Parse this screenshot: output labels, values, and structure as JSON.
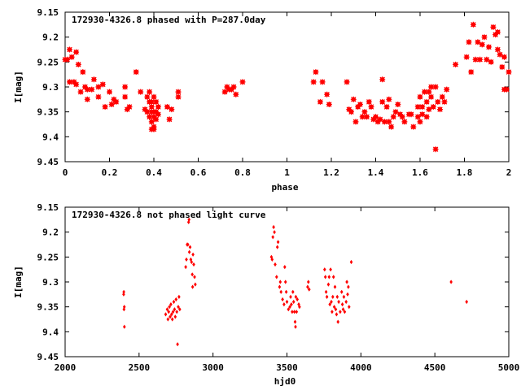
{
  "chart_data": [
    {
      "type": "scatter",
      "title": "172930-4326.8 phased with P=287.0day",
      "xlabel": "phase",
      "ylabel": "I[mag]",
      "xlim": [
        0,
        2
      ],
      "ylim": [
        9.45,
        9.15
      ],
      "y_inverted": true,
      "grid": false,
      "x_ticks": [
        0,
        0.2,
        0.4,
        0.6,
        0.8,
        1,
        1.2,
        1.4,
        1.6,
        1.8,
        2
      ],
      "x_tick_labels": [
        "0",
        "0.2",
        "0.4",
        "0.6",
        "0.8",
        "1",
        "1.2",
        "1.4",
        "1.6",
        "1.8",
        "2"
      ],
      "y_ticks": [
        9.15,
        9.2,
        9.25,
        9.3,
        9.35,
        9.4,
        9.45
      ],
      "y_tick_labels": [
        "9.15",
        "9.2",
        "9.25",
        "9.3",
        "9.35",
        "9.4",
        "9.45"
      ],
      "marker": "star",
      "color": "#ff0000",
      "points": [
        [
          0.0,
          9.245
        ],
        [
          0.01,
          9.245
        ],
        [
          0.02,
          9.225
        ],
        [
          0.03,
          9.24
        ],
        [
          0.02,
          9.29
        ],
        [
          0.04,
          9.29
        ],
        [
          0.05,
          9.23
        ],
        [
          0.06,
          9.255
        ],
        [
          0.05,
          9.295
        ],
        [
          0.07,
          9.31
        ],
        [
          0.08,
          9.27
        ],
        [
          0.09,
          9.3
        ],
        [
          0.1,
          9.305
        ],
        [
          0.1,
          9.325
        ],
        [
          0.12,
          9.305
        ],
        [
          0.13,
          9.285
        ],
        [
          0.15,
          9.32
        ],
        [
          0.15,
          9.3
        ],
        [
          0.17,
          9.295
        ],
        [
          0.18,
          9.34
        ],
        [
          0.2,
          9.31
        ],
        [
          0.21,
          9.335
        ],
        [
          0.22,
          9.325
        ],
        [
          0.23,
          9.33
        ],
        [
          0.27,
          9.3
        ],
        [
          0.27,
          9.32
        ],
        [
          0.28,
          9.345
        ],
        [
          0.29,
          9.34
        ],
        [
          0.32,
          9.27
        ],
        [
          0.34,
          9.31
        ],
        [
          0.36,
          9.345
        ],
        [
          0.37,
          9.35
        ],
        [
          0.37,
          9.32
        ],
        [
          0.38,
          9.31
        ],
        [
          0.38,
          9.33
        ],
        [
          0.38,
          9.36
        ],
        [
          0.39,
          9.33
        ],
        [
          0.39,
          9.34
        ],
        [
          0.39,
          9.35
        ],
        [
          0.39,
          9.37
        ],
        [
          0.39,
          9.385
        ],
        [
          0.4,
          9.32
        ],
        [
          0.4,
          9.35
        ],
        [
          0.4,
          9.36
        ],
        [
          0.4,
          9.38
        ],
        [
          0.4,
          9.385
        ],
        [
          0.41,
          9.33
        ],
        [
          0.41,
          9.35
        ],
        [
          0.41,
          9.365
        ],
        [
          0.42,
          9.34
        ],
        [
          0.42,
          9.355
        ],
        [
          0.46,
          9.34
        ],
        [
          0.47,
          9.365
        ],
        [
          0.48,
          9.345
        ],
        [
          0.51,
          9.31
        ],
        [
          0.51,
          9.32
        ],
        [
          0.72,
          9.31
        ],
        [
          0.73,
          9.3
        ],
        [
          0.74,
          9.305
        ],
        [
          0.75,
          9.305
        ],
        [
          0.76,
          9.3
        ],
        [
          0.77,
          9.315
        ],
        [
          0.8,
          9.29
        ],
        [
          1.12,
          9.29
        ],
        [
          1.13,
          9.27
        ],
        [
          1.15,
          9.33
        ],
        [
          1.16,
          9.29
        ],
        [
          1.18,
          9.315
        ],
        [
          1.19,
          9.335
        ],
        [
          1.27,
          9.29
        ],
        [
          1.28,
          9.345
        ],
        [
          1.29,
          9.35
        ],
        [
          1.3,
          9.325
        ],
        [
          1.31,
          9.37
        ],
        [
          1.32,
          9.34
        ],
        [
          1.33,
          9.335
        ],
        [
          1.34,
          9.36
        ],
        [
          1.35,
          9.35
        ],
        [
          1.36,
          9.36
        ],
        [
          1.37,
          9.33
        ],
        [
          1.38,
          9.34
        ],
        [
          1.39,
          9.365
        ],
        [
          1.4,
          9.36
        ],
        [
          1.41,
          9.37
        ],
        [
          1.42,
          9.365
        ],
        [
          1.43,
          9.33
        ],
        [
          1.43,
          9.285
        ],
        [
          1.44,
          9.37
        ],
        [
          1.45,
          9.34
        ],
        [
          1.46,
          9.37
        ],
        [
          1.46,
          9.325
        ],
        [
          1.47,
          9.38
        ],
        [
          1.48,
          9.36
        ],
        [
          1.49,
          9.35
        ],
        [
          1.5,
          9.335
        ],
        [
          1.51,
          9.355
        ],
        [
          1.52,
          9.36
        ],
        [
          1.53,
          9.37
        ],
        [
          1.55,
          9.355
        ],
        [
          1.56,
          9.355
        ],
        [
          1.57,
          9.38
        ],
        [
          1.59,
          9.36
        ],
        [
          1.59,
          9.34
        ],
        [
          1.6,
          9.37
        ],
        [
          1.6,
          9.32
        ],
        [
          1.61,
          9.34
        ],
        [
          1.61,
          9.355
        ],
        [
          1.62,
          9.31
        ],
        [
          1.63,
          9.33
        ],
        [
          1.63,
          9.36
        ],
        [
          1.64,
          9.31
        ],
        [
          1.64,
          9.345
        ],
        [
          1.65,
          9.3
        ],
        [
          1.65,
          9.32
        ],
        [
          1.66,
          9.34
        ],
        [
          1.67,
          9.3
        ],
        [
          1.67,
          9.425
        ],
        [
          1.68,
          9.33
        ],
        [
          1.69,
          9.345
        ],
        [
          1.7,
          9.32
        ],
        [
          1.71,
          9.33
        ],
        [
          1.72,
          9.305
        ],
        [
          1.76,
          9.255
        ],
        [
          1.81,
          9.24
        ],
        [
          1.82,
          9.21
        ],
        [
          1.83,
          9.27
        ],
        [
          1.84,
          9.175
        ],
        [
          1.85,
          9.245
        ],
        [
          1.86,
          9.21
        ],
        [
          1.87,
          9.245
        ],
        [
          1.88,
          9.215
        ],
        [
          1.89,
          9.2
        ],
        [
          1.9,
          9.245
        ],
        [
          1.91,
          9.22
        ],
        [
          1.92,
          9.25
        ],
        [
          1.93,
          9.18
        ],
        [
          1.94,
          9.195
        ],
        [
          1.95,
          9.19
        ],
        [
          1.95,
          9.225
        ],
        [
          1.96,
          9.235
        ],
        [
          1.97,
          9.26
        ],
        [
          1.98,
          9.24
        ],
        [
          1.98,
          9.305
        ],
        [
          1.99,
          9.305
        ],
        [
          2.0,
          9.27
        ]
      ]
    },
    {
      "type": "scatter",
      "title": "172930-4326.8 not phased light curve",
      "xlabel": "hjd0",
      "ylabel": "I[mag]",
      "xlim": [
        2000,
        5000
      ],
      "ylim": [
        9.45,
        9.15
      ],
      "y_inverted": true,
      "grid": false,
      "x_ticks": [
        2000,
        2500,
        3000,
        3500,
        4000,
        4500,
        5000
      ],
      "x_tick_labels": [
        "2000",
        "2500",
        "3000",
        "3500",
        "4000",
        "4500",
        "5000"
      ],
      "y_ticks": [
        9.15,
        9.2,
        9.25,
        9.3,
        9.35,
        9.4,
        9.45
      ],
      "y_tick_labels": [
        "9.15",
        "9.2",
        "9.25",
        "9.3",
        "9.35",
        "9.4",
        "9.45"
      ],
      "marker": "diamond",
      "color": "#ff0000",
      "points": [
        [
          2396,
          9.325
        ],
        [
          2397,
          9.32
        ],
        [
          2398,
          9.355
        ],
        [
          2400,
          9.35
        ],
        [
          2401,
          9.39
        ],
        [
          2680,
          9.365
        ],
        [
          2690,
          9.355
        ],
        [
          2695,
          9.375
        ],
        [
          2700,
          9.36
        ],
        [
          2705,
          9.35
        ],
        [
          2710,
          9.37
        ],
        [
          2715,
          9.345
        ],
        [
          2720,
          9.365
        ],
        [
          2725,
          9.375
        ],
        [
          2730,
          9.36
        ],
        [
          2735,
          9.34
        ],
        [
          2740,
          9.355
        ],
        [
          2745,
          9.37
        ],
        [
          2750,
          9.335
        ],
        [
          2755,
          9.36
        ],
        [
          2760,
          9.425
        ],
        [
          2765,
          9.35
        ],
        [
          2770,
          9.33
        ],
        [
          2775,
          9.355
        ],
        [
          2815,
          9.27
        ],
        [
          2820,
          9.255
        ],
        [
          2825,
          9.225
        ],
        [
          2830,
          9.225
        ],
        [
          2835,
          9.18
        ],
        [
          2838,
          9.175
        ],
        [
          2840,
          9.24
        ],
        [
          2845,
          9.23
        ],
        [
          2850,
          9.255
        ],
        [
          2855,
          9.26
        ],
        [
          2860,
          9.285
        ],
        [
          2862,
          9.31
        ],
        [
          2865,
          9.245
        ],
        [
          2870,
          9.265
        ],
        [
          2875,
          9.29
        ],
        [
          2880,
          9.305
        ],
        [
          3395,
          9.25
        ],
        [
          3400,
          9.255
        ],
        [
          3405,
          9.21
        ],
        [
          3410,
          9.19
        ],
        [
          3415,
          9.2
        ],
        [
          3420,
          9.265
        ],
        [
          3430,
          9.29
        ],
        [
          3435,
          9.23
        ],
        [
          3440,
          9.22
        ],
        [
          3450,
          9.31
        ],
        [
          3455,
          9.3
        ],
        [
          3460,
          9.32
        ],
        [
          3470,
          9.335
        ],
        [
          3480,
          9.345
        ],
        [
          3485,
          9.27
        ],
        [
          3490,
          9.3
        ],
        [
          3495,
          9.32
        ],
        [
          3500,
          9.34
        ],
        [
          3510,
          9.355
        ],
        [
          3520,
          9.35
        ],
        [
          3525,
          9.33
        ],
        [
          3530,
          9.345
        ],
        [
          3535,
          9.36
        ],
        [
          3540,
          9.32
        ],
        [
          3545,
          9.34
        ],
        [
          3550,
          9.36
        ],
        [
          3555,
          9.38
        ],
        [
          3558,
          9.39
        ],
        [
          3560,
          9.33
        ],
        [
          3565,
          9.36
        ],
        [
          3570,
          9.335
        ],
        [
          3580,
          9.345
        ],
        [
          3585,
          9.35
        ],
        [
          3640,
          9.31
        ],
        [
          3645,
          9.3
        ],
        [
          3650,
          9.315
        ],
        [
          3755,
          9.275
        ],
        [
          3760,
          9.29
        ],
        [
          3765,
          9.32
        ],
        [
          3770,
          9.33
        ],
        [
          3780,
          9.305
        ],
        [
          3785,
          9.29
        ],
        [
          3790,
          9.345
        ],
        [
          3795,
          9.275
        ],
        [
          3800,
          9.34
        ],
        [
          3805,
          9.36
        ],
        [
          3810,
          9.33
        ],
        [
          3815,
          9.29
        ],
        [
          3820,
          9.35
        ],
        [
          3825,
          9.31
        ],
        [
          3830,
          9.355
        ],
        [
          3835,
          9.365
        ],
        [
          3840,
          9.33
        ],
        [
          3845,
          9.38
        ],
        [
          3850,
          9.34
        ],
        [
          3860,
          9.36
        ],
        [
          3870,
          9.32
        ],
        [
          3875,
          9.345
        ],
        [
          3880,
          9.355
        ],
        [
          3885,
          9.33
        ],
        [
          3890,
          9.36
        ],
        [
          3900,
          9.34
        ],
        [
          3905,
          9.3
        ],
        [
          3910,
          9.325
        ],
        [
          3915,
          9.31
        ],
        [
          3920,
          9.35
        ],
        [
          3935,
          9.26
        ],
        [
          4610,
          9.3
        ],
        [
          4715,
          9.34
        ]
      ]
    }
  ]
}
